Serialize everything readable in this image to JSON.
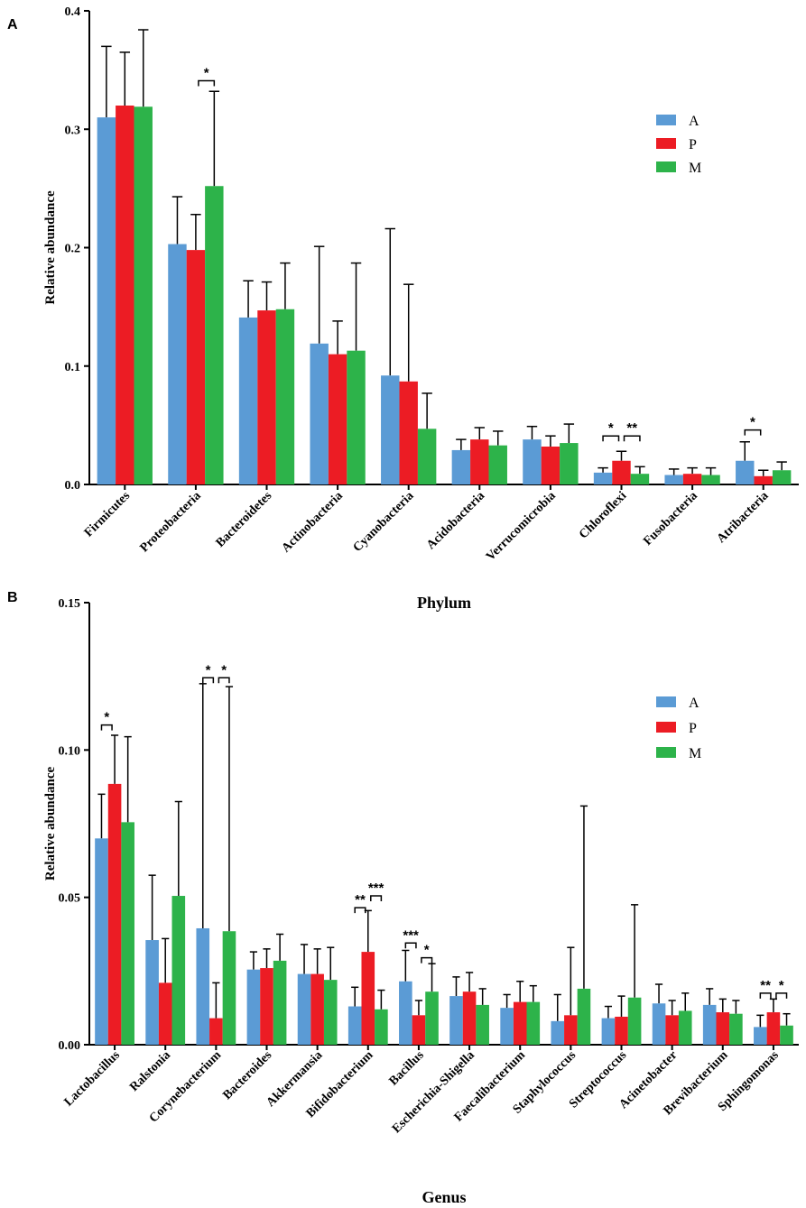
{
  "series_colors": {
    "A": "#5b9bd5",
    "P": "#ec1c24",
    "M": "#2db34a"
  },
  "chart_data": [
    {
      "panel": "A",
      "type": "bar",
      "title": "",
      "xlabel": "Phylum",
      "ylabel": "Relative abundance",
      "ylim": [
        0,
        0.4
      ],
      "yticks": [
        0.0,
        0.1,
        0.2,
        0.3,
        0.4
      ],
      "ytick_labels": [
        "0.0",
        "0.1",
        "0.2",
        "0.3",
        "0.4"
      ],
      "legend": {
        "position": "top-right",
        "entries": [
          "A",
          "P",
          "M"
        ]
      },
      "categories": [
        "Firmicutes",
        "Proteobacteria",
        "Bacteroidetes",
        "Actinobacteria",
        "Cyanobacteria",
        "Acidobacteria",
        "Verrucomicrobia",
        "Chloroflexi",
        "Fusobacteria",
        "Atribacteria"
      ],
      "series": [
        {
          "name": "A",
          "values": [
            0.31,
            0.203,
            0.141,
            0.119,
            0.092,
            0.029,
            0.038,
            0.01,
            0.008,
            0.02
          ],
          "errors": [
            0.06,
            0.04,
            0.031,
            0.082,
            0.124,
            0.009,
            0.011,
            0.004,
            0.005,
            0.016
          ]
        },
        {
          "name": "P",
          "values": [
            0.32,
            0.198,
            0.147,
            0.11,
            0.087,
            0.038,
            0.032,
            0.02,
            0.009,
            0.007
          ],
          "errors": [
            0.045,
            0.03,
            0.024,
            0.028,
            0.082,
            0.01,
            0.009,
            0.008,
            0.005,
            0.005
          ]
        },
        {
          "name": "M",
          "values": [
            0.319,
            0.252,
            0.148,
            0.113,
            0.047,
            0.033,
            0.035,
            0.009,
            0.008,
            0.012
          ],
          "errors": [
            0.065,
            0.08,
            0.039,
            0.074,
            0.03,
            0.012,
            0.016,
            0.006,
            0.006,
            0.007
          ]
        }
      ],
      "significance": [
        {
          "category": 1,
          "from": "P",
          "to": "M",
          "label": "*",
          "y": 0.341
        },
        {
          "category": 7,
          "from": "A",
          "to": "P",
          "label": "*",
          "y": 0.041
        },
        {
          "category": 7,
          "from": "P",
          "to": "M",
          "label": "**",
          "y": 0.041
        },
        {
          "category": 9,
          "from": "A",
          "to": "P",
          "label": "*",
          "y": 0.046
        }
      ]
    },
    {
      "panel": "B",
      "type": "bar",
      "title": "",
      "xlabel": "Genus",
      "ylabel": "Relative abundance",
      "ylim": [
        0,
        0.15
      ],
      "yticks": [
        0.0,
        0.05,
        0.1,
        0.15
      ],
      "ytick_labels": [
        "0.00",
        "0.05",
        "0.10",
        "0.15"
      ],
      "legend": {
        "position": "top-right",
        "entries": [
          "A",
          "P",
          "M"
        ]
      },
      "categories": [
        "Lactobacillus",
        "Ralstonia",
        "Corynebacterium",
        "Bacteroides",
        "Akkermansia",
        "Bifidobacterium",
        "Bacillus",
        "Escherichia-Shigella",
        "Faecalibacterium",
        "Staphylococcus",
        "Streptococcus",
        "Acinetobacter",
        "Brevibacterium",
        "Sphingomonas"
      ],
      "series": [
        {
          "name": "A",
          "values": [
            0.07,
            0.0355,
            0.0395,
            0.0255,
            0.024,
            0.013,
            0.0215,
            0.0165,
            0.0125,
            0.008,
            0.009,
            0.014,
            0.0135,
            0.006
          ],
          "errors": [
            0.015,
            0.022,
            0.083,
            0.006,
            0.01,
            0.0065,
            0.0105,
            0.0065,
            0.0045,
            0.009,
            0.004,
            0.0065,
            0.0055,
            0.004
          ]
        },
        {
          "name": "P",
          "values": [
            0.0885,
            0.021,
            0.009,
            0.026,
            0.024,
            0.0315,
            0.01,
            0.018,
            0.0145,
            0.01,
            0.0095,
            0.01,
            0.011,
            0.011
          ],
          "errors": [
            0.0165,
            0.015,
            0.012,
            0.0065,
            0.0085,
            0.014,
            0.005,
            0.0065,
            0.007,
            0.023,
            0.007,
            0.005,
            0.0045,
            0.0045
          ]
        },
        {
          "name": "M",
          "values": [
            0.0755,
            0.0505,
            0.0385,
            0.0285,
            0.022,
            0.012,
            0.018,
            0.0135,
            0.0145,
            0.019,
            0.016,
            0.0115,
            0.0105,
            0.0065
          ],
          "errors": [
            0.029,
            0.032,
            0.083,
            0.009,
            0.011,
            0.0065,
            0.0095,
            0.0055,
            0.0055,
            0.062,
            0.0315,
            0.006,
            0.0045,
            0.004
          ]
        }
      ],
      "significance": [
        {
          "category": 0,
          "from": "A",
          "to": "P",
          "label": "*",
          "y": 0.1085
        },
        {
          "category": 2,
          "from": "A",
          "to": "P",
          "label": "*",
          "y": 0.1245
        },
        {
          "category": 2,
          "from": "P",
          "to": "M",
          "label": "*",
          "y": 0.1245
        },
        {
          "category": 5,
          "from": "A",
          "to": "P",
          "label": "**",
          "y": 0.0465
        },
        {
          "category": 5,
          "from": "P",
          "to": "M",
          "label": "***",
          "y": 0.0505
        },
        {
          "category": 6,
          "from": "A",
          "to": "P",
          "label": "***",
          "y": 0.0345
        },
        {
          "category": 6,
          "from": "P",
          "to": "M",
          "label": "*",
          "y": 0.0295
        },
        {
          "category": 13,
          "from": "A",
          "to": "P",
          "label": "**",
          "y": 0.0175
        },
        {
          "category": 13,
          "from": "P",
          "to": "M",
          "label": "*",
          "y": 0.0175
        }
      ]
    }
  ]
}
